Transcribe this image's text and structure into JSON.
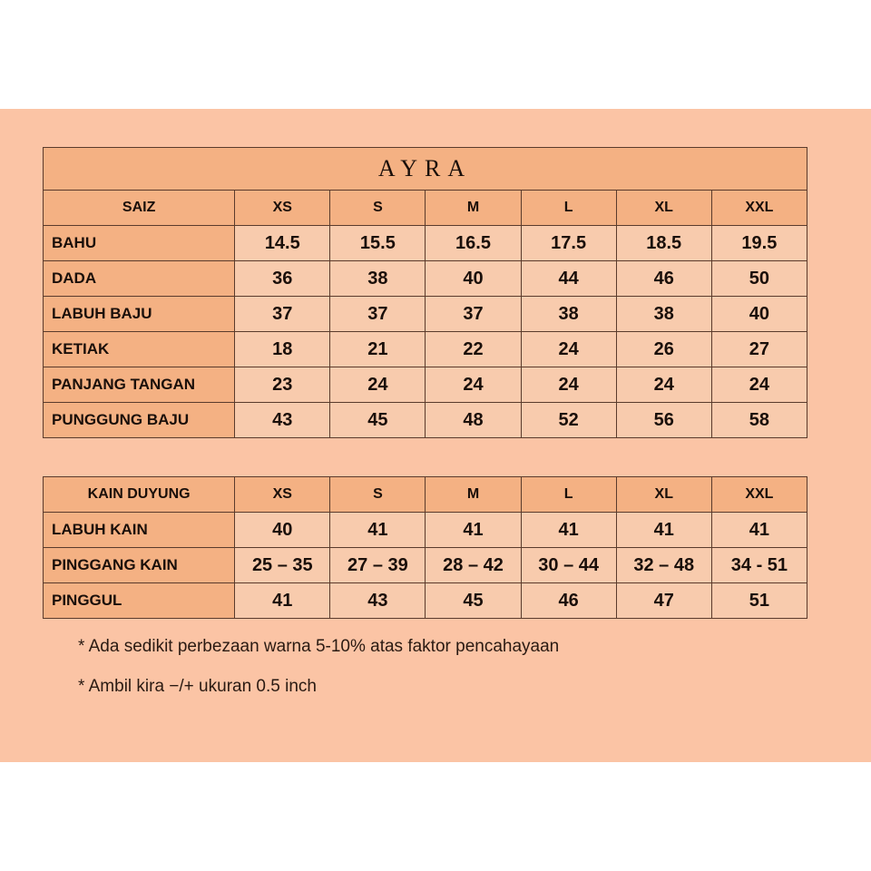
{
  "colors": {
    "background": "#FBC4A5",
    "header": "#F4B183",
    "cell": "#F8CBAD",
    "border": "#5a3b2c"
  },
  "title": "AYRA",
  "table1": {
    "header": [
      "SAIZ",
      "XS",
      "S",
      "M",
      "L",
      "XL",
      "XXL"
    ],
    "rows": [
      {
        "label": "BAHU",
        "values": [
          "14.5",
          "15.5",
          "16.5",
          "17.5",
          "18.5",
          "19.5"
        ]
      },
      {
        "label": "DADA",
        "values": [
          "36",
          "38",
          "40",
          "44",
          "46",
          "50"
        ]
      },
      {
        "label": "LABUH BAJU",
        "values": [
          "37",
          "37",
          "37",
          "38",
          "38",
          "40"
        ]
      },
      {
        "label": "KETIAK",
        "values": [
          "18",
          "21",
          "22",
          "24",
          "26",
          "27"
        ]
      },
      {
        "label": "PANJANG TANGAN",
        "values": [
          "23",
          "24",
          "24",
          "24",
          "24",
          "24"
        ]
      },
      {
        "label": "PUNGGUNG BAJU",
        "values": [
          "43",
          "45",
          "48",
          "52",
          "56",
          "58"
        ]
      }
    ]
  },
  "table2": {
    "header": [
      "KAIN DUYUNG",
      "XS",
      "S",
      "M",
      "L",
      "XL",
      "XXL"
    ],
    "rows": [
      {
        "label": "LABUH KAIN",
        "values": [
          "40",
          "41",
          "41",
          "41",
          "41",
          "41"
        ]
      },
      {
        "label": "PINGGANG KAIN",
        "values": [
          "25 – 35",
          "27 – 39",
          "28 – 42",
          "30 – 44",
          "32 – 48",
          "34 - 51"
        ]
      },
      {
        "label": "PINGGUL",
        "values": [
          "41",
          "43",
          "45",
          "46",
          "47",
          "51"
        ]
      }
    ]
  },
  "notes": [
    "*  Ada sedikit perbezaan warna 5-10% atas faktor pencahayaan",
    "*  Ambil kira −/+ ukuran 0.5 inch"
  ]
}
